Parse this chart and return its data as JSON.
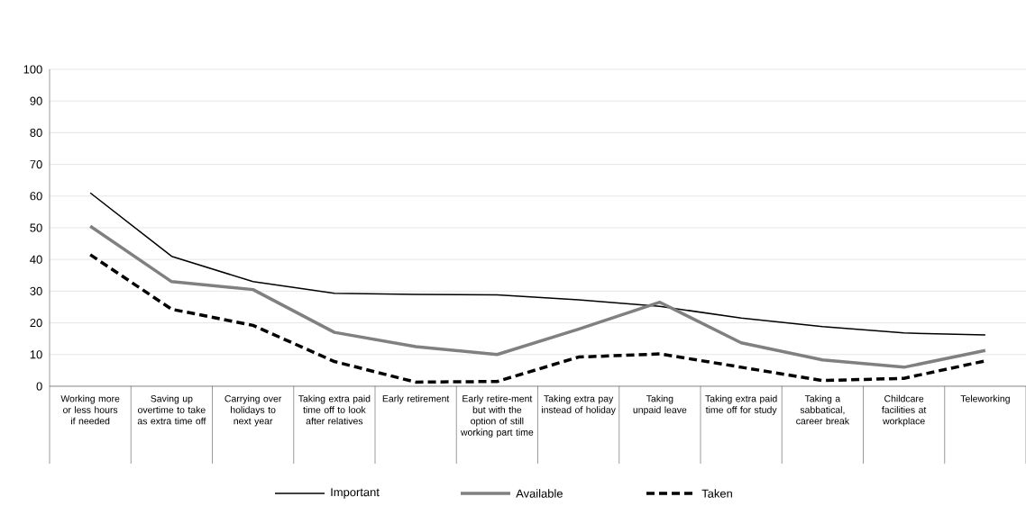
{
  "chart_data": {
    "type": "line",
    "categories": [
      "Working more or less hours if needed",
      "Saving up overtime to take as extra time off",
      "Carrying over holidays to next year",
      "Taking extra paid time off to look after relatives",
      "Early retirement",
      "Early retire-ment but with the option of still working part time",
      "Taking extra pay instead of holiday",
      "Taking unpaid leave",
      "Taking extra paid time off for study",
      "Taking a sabbatical, career break",
      "Childcare facilities at workplace",
      "Teleworking"
    ],
    "series": [
      {
        "name": "Important",
        "color": "#000000",
        "line_style": "solid",
        "values": [
          61,
          41,
          33,
          29.3,
          29,
          28.8,
          27.3,
          25.2,
          21.5,
          18.8,
          16.8,
          16.2
        ]
      },
      {
        "name": "Available",
        "color": "#808080",
        "line_style": "solid",
        "values": [
          50.5,
          33,
          30.5,
          17,
          12.5,
          10,
          18,
          26.5,
          13.7,
          8.3,
          6,
          11.3
        ]
      },
      {
        "name": "Taken",
        "color": "#000000",
        "line_style": "dashed",
        "values": [
          41.5,
          24.3,
          19.2,
          7.8,
          1.3,
          1.5,
          9.2,
          10.2,
          6,
          1.8,
          2.5,
          8
        ]
      }
    ],
    "ylim": [
      0,
      100
    ],
    "yticks": [
      0,
      10,
      20,
      30,
      40,
      50,
      60,
      70,
      80,
      90,
      100
    ],
    "grid": "y",
    "legend": "bottom",
    "marker": "none"
  }
}
